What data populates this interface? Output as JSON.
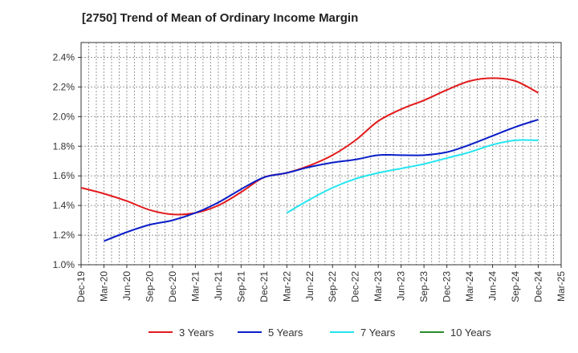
{
  "chart_data": {
    "type": "line",
    "title": "[2750]  Trend of Mean of Ordinary Income Margin",
    "xlabel": "",
    "ylabel": "",
    "x_ticks": [
      "Dec-19",
      "Mar-20",
      "Jun-20",
      "Sep-20",
      "Dec-20",
      "Mar-21",
      "Jun-21",
      "Sep-21",
      "Dec-21",
      "Mar-22",
      "Jun-22",
      "Sep-22",
      "Dec-22",
      "Mar-23",
      "Jun-23",
      "Sep-23",
      "Dec-23",
      "Mar-24",
      "Jun-24",
      "Sep-24",
      "Dec-24",
      "Mar-25"
    ],
    "y_ticks": [
      "1.0%",
      "1.2%",
      "1.4%",
      "1.6%",
      "1.8%",
      "2.0%",
      "2.2%",
      "2.4%"
    ],
    "ylim": [
      1.0,
      2.5
    ],
    "grid": true,
    "legend_position": "bottom",
    "series": [
      {
        "name": "3 Years",
        "color": "#e31a1c",
        "x": [
          "Dec-19",
          "Mar-20",
          "Jun-20",
          "Sep-20",
          "Dec-20",
          "Mar-21",
          "Jun-21",
          "Sep-21",
          "Dec-21",
          "Mar-22",
          "Jun-22",
          "Sep-22",
          "Dec-22",
          "Mar-23",
          "Jun-23",
          "Sep-23",
          "Dec-23",
          "Mar-24",
          "Jun-24",
          "Sep-24",
          "Dec-24"
        ],
        "values": [
          1.52,
          1.48,
          1.43,
          1.37,
          1.34,
          1.35,
          1.4,
          1.49,
          1.59,
          1.62,
          1.67,
          1.74,
          1.84,
          1.97,
          2.05,
          2.11,
          2.18,
          2.24,
          2.26,
          2.24,
          2.16
        ]
      },
      {
        "name": "5 Years",
        "color": "#0a1ec8",
        "x": [
          "Mar-20",
          "Jun-20",
          "Sep-20",
          "Dec-20",
          "Mar-21",
          "Jun-21",
          "Sep-21",
          "Dec-21",
          "Mar-22",
          "Jun-22",
          "Sep-22",
          "Dec-22",
          "Mar-23",
          "Jun-23",
          "Sep-23",
          "Dec-23",
          "Mar-24",
          "Jun-24",
          "Sep-24",
          "Dec-24"
        ],
        "values": [
          1.16,
          1.22,
          1.27,
          1.3,
          1.35,
          1.42,
          1.51,
          1.59,
          1.62,
          1.66,
          1.69,
          1.71,
          1.74,
          1.74,
          1.74,
          1.76,
          1.81,
          1.87,
          1.93,
          1.98
        ]
      },
      {
        "name": "7 Years",
        "color": "#22e5f0",
        "x": [
          "Mar-22",
          "Jun-22",
          "Sep-22",
          "Dec-22",
          "Mar-23",
          "Jun-23",
          "Sep-23",
          "Dec-23",
          "Mar-24",
          "Jun-24",
          "Sep-24",
          "Dec-24"
        ],
        "values": [
          1.35,
          1.44,
          1.52,
          1.58,
          1.62,
          1.65,
          1.68,
          1.72,
          1.76,
          1.81,
          1.84,
          1.84
        ]
      },
      {
        "name": "10 Years",
        "color": "#2a8a2a",
        "x": [],
        "values": []
      }
    ]
  }
}
